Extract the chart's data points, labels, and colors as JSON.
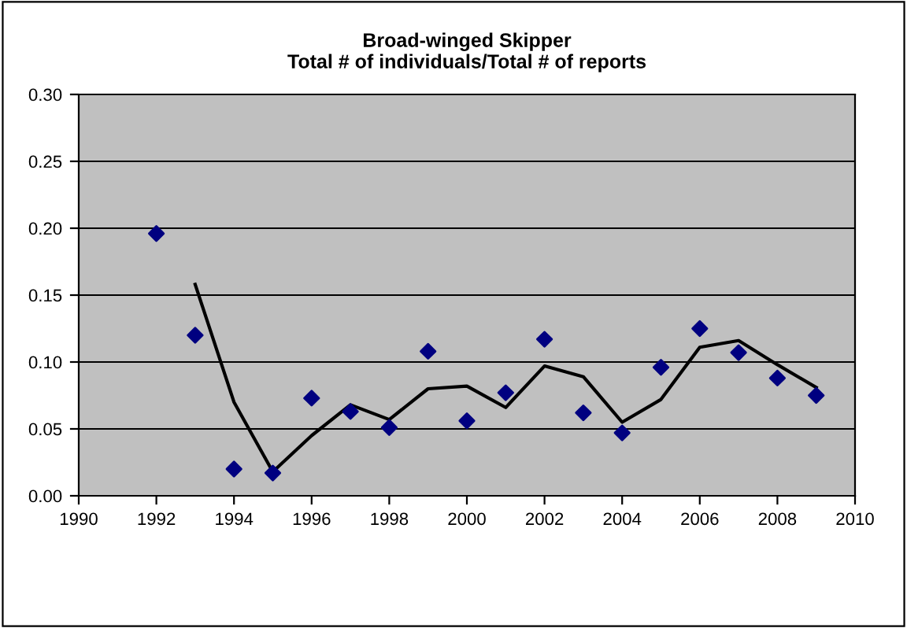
{
  "chart_data": {
    "type": "scatter",
    "title": "Broad-winged Skipper\nTotal # of individuals/Total # of reports",
    "grid": "y",
    "legend": false,
    "x": [
      1992,
      1993,
      1994,
      1995,
      1996,
      1997,
      1998,
      1999,
      2000,
      2001,
      2002,
      2003,
      2004,
      2005,
      2006,
      2007,
      2008,
      2009
    ],
    "series": [
      {
        "marker": "diamond",
        "color": "#000080",
        "values": [
          0.196,
          0.12,
          0.02,
          0.017,
          0.073,
          0.063,
          0.051,
          0.108,
          0.056,
          0.077,
          0.117,
          0.062,
          0.047,
          0.096,
          0.125,
          0.107,
          0.088,
          0.075
        ]
      },
      {
        "type": "line",
        "marker": "none",
        "color": "#000000",
        "x": [
          1993,
          1994,
          1995,
          1996,
          1997,
          1998,
          1999,
          2000,
          2001,
          2002,
          2003,
          2004,
          2005,
          2006,
          2007,
          2008,
          2009
        ],
        "values": [
          0.158,
          0.07,
          0.018,
          0.045,
          0.068,
          0.057,
          0.08,
          0.082,
          0.066,
          0.097,
          0.089,
          0.055,
          0.072,
          0.111,
          0.116,
          0.098,
          0.081
        ]
      }
    ],
    "xlim": [
      1990,
      2010
    ],
    "xticks": [
      1990,
      1992,
      1994,
      1996,
      1998,
      2000,
      2002,
      2004,
      2006,
      2008,
      2010
    ],
    "ylim": [
      0,
      0.3
    ],
    "yticks": [
      {
        "value": 0,
        "label": "0.00"
      },
      {
        "value": 0.05,
        "label": "0.05"
      },
      {
        "value": 0.1,
        "label": "0.10"
      },
      {
        "value": 0.15,
        "label": "0.15"
      },
      {
        "value": 0.2,
        "label": "0.20"
      },
      {
        "value": 0.25,
        "label": "0.25"
      },
      {
        "value": 0.3,
        "label": "0.30"
      }
    ]
  }
}
